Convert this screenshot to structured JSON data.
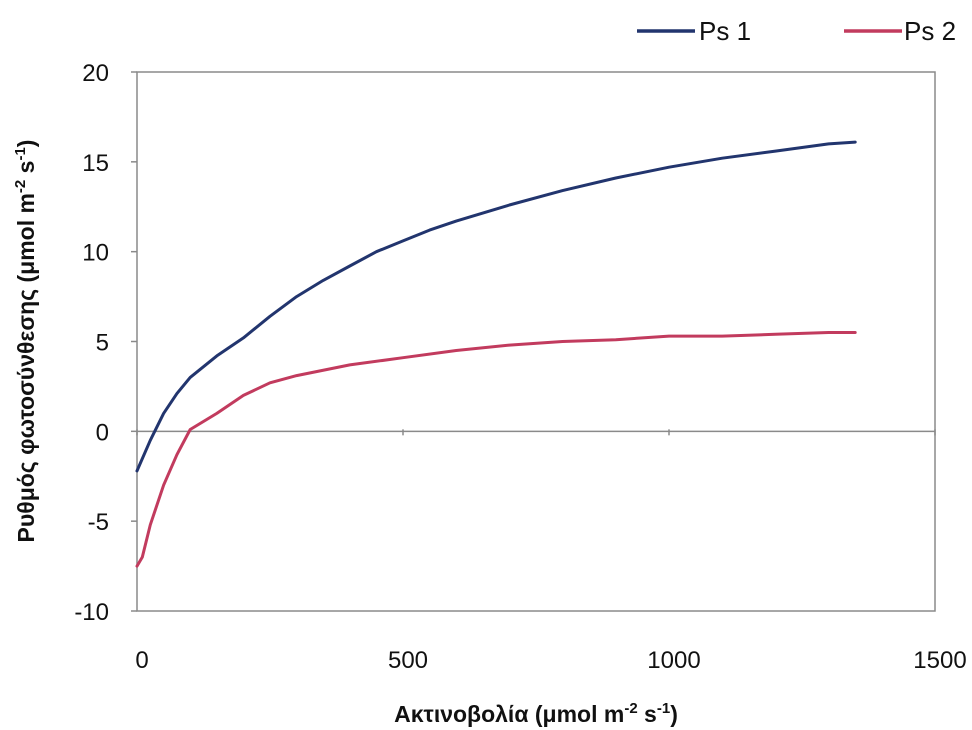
{
  "chart_data": {
    "type": "line",
    "title": "",
    "xlabel": {
      "text": "Ακτινοβολία (μmol m",
      "sup1": "-2",
      "mid": " s",
      "sup2": "-1",
      "end": ")"
    },
    "ylabel": {
      "text": "Ρυθμός φωτοσύνθεσης (μmol m",
      "sup1": "-2",
      "mid": " s",
      "sup2": "-1",
      "end": ")"
    },
    "xlim": [
      0,
      1500
    ],
    "ylim": [
      -10,
      20
    ],
    "xticks": [
      0,
      500,
      1000,
      1500
    ],
    "xtick_labels": [
      "0",
      "500",
      "1000",
      "1500"
    ],
    "yticks": [
      20,
      15,
      10,
      5,
      0,
      -5,
      -10
    ],
    "ytick_labels": [
      "20",
      "15",
      "10",
      "5",
      "0",
      "-5",
      "-10"
    ],
    "grid": false,
    "legend_position": "top-right",
    "series": [
      {
        "name": "Ps 1",
        "color": "#22356e",
        "x": [
          0,
          25,
          50,
          75,
          100,
          150,
          200,
          250,
          300,
          350,
          400,
          450,
          500,
          550,
          600,
          700,
          800,
          900,
          1000,
          1100,
          1200,
          1300,
          1350
        ],
        "y": [
          -2.2,
          -0.5,
          1.0,
          2.1,
          3.0,
          4.2,
          5.2,
          6.4,
          7.5,
          8.4,
          9.2,
          10.0,
          10.6,
          11.2,
          11.7,
          12.6,
          13.4,
          14.1,
          14.7,
          15.2,
          15.6,
          16.0,
          16.1
        ]
      },
      {
        "name": "Ps 2",
        "color": "#c23b5e",
        "x": [
          0,
          10,
          25,
          50,
          75,
          100,
          150,
          200,
          250,
          300,
          400,
          500,
          600,
          700,
          800,
          900,
          1000,
          1100,
          1200,
          1300,
          1350
        ],
        "y": [
          -7.5,
          -7.0,
          -5.2,
          -3.0,
          -1.3,
          0.1,
          1.0,
          2.0,
          2.7,
          3.1,
          3.7,
          4.1,
          4.5,
          4.8,
          5.0,
          5.1,
          5.3,
          5.3,
          5.4,
          5.5,
          5.5
        ]
      }
    ]
  }
}
